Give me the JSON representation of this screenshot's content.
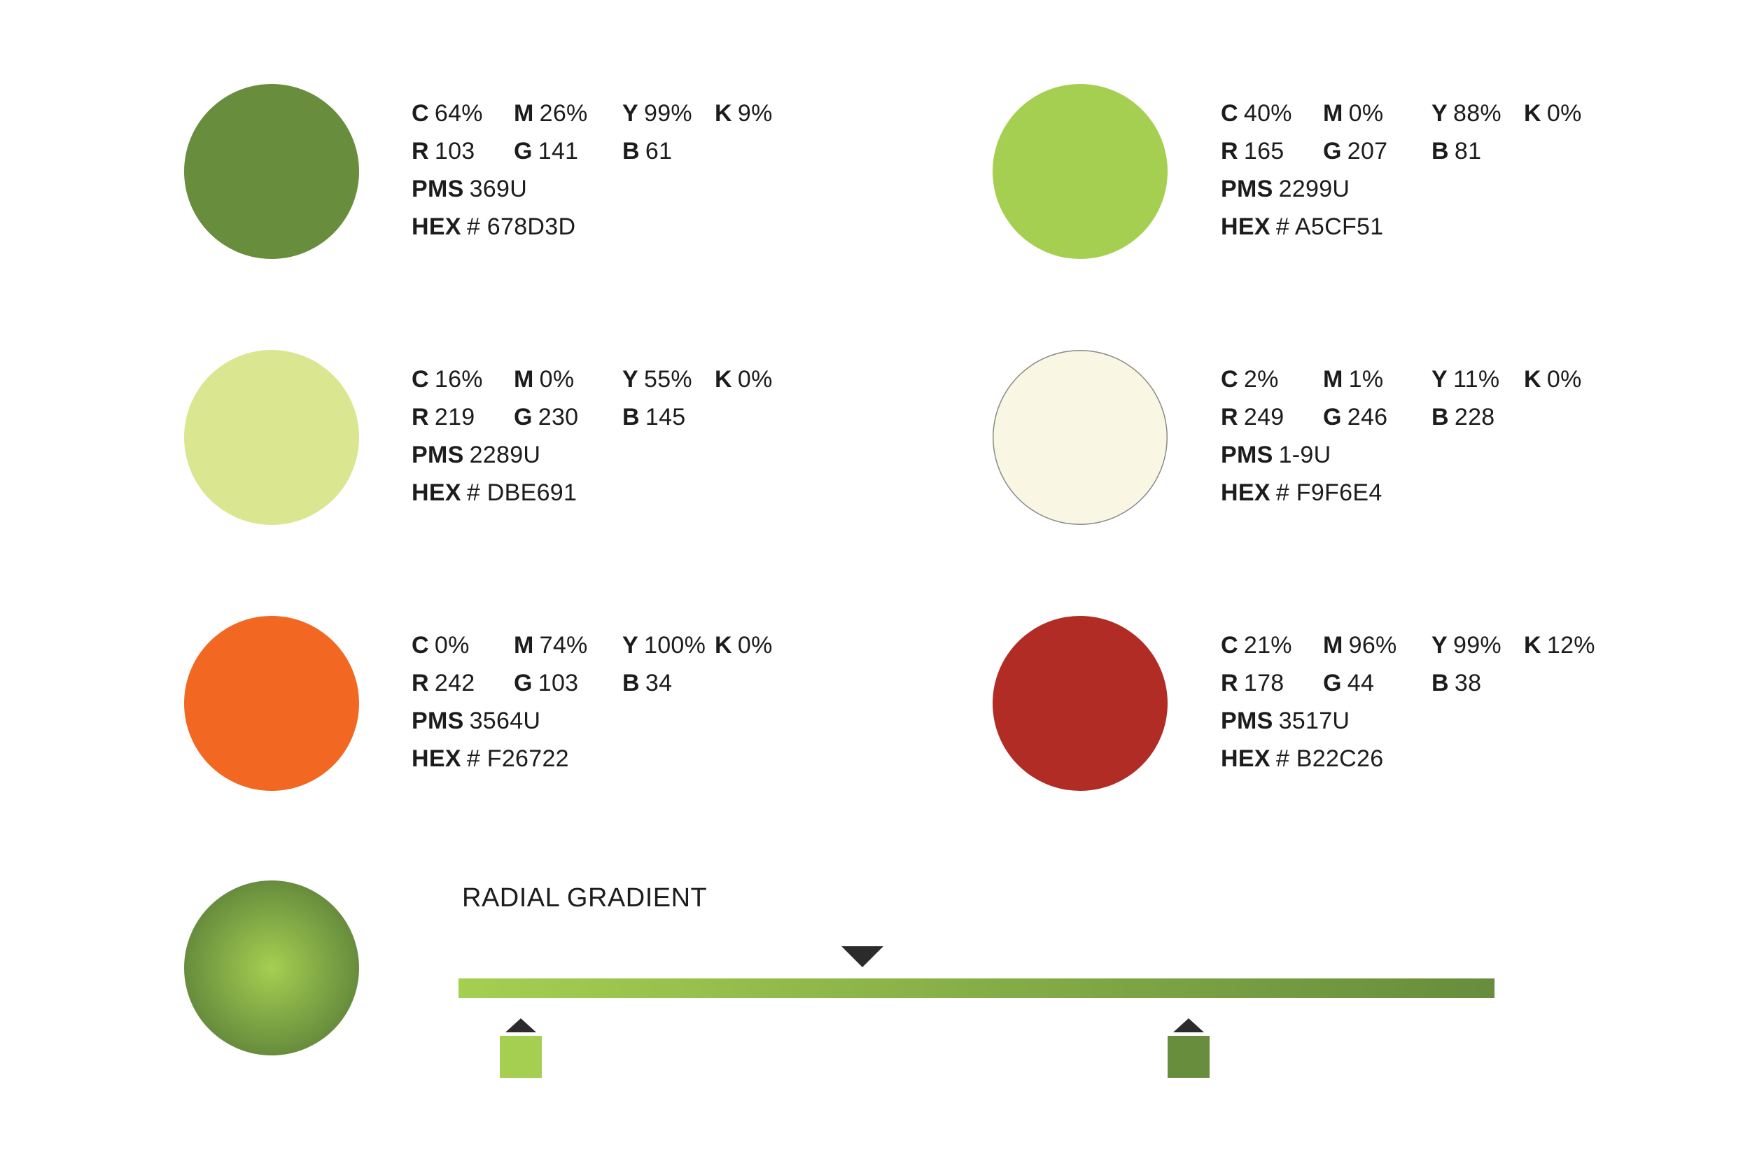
{
  "swatches": [
    {
      "c": "64%",
      "m": "26%",
      "y": "99%",
      "k": "9%",
      "r": "103",
      "g": "141",
      "b": "61",
      "pms": "369U",
      "hex": "678D3D",
      "color": "#678D3D"
    },
    {
      "c": "40%",
      "m": "0%",
      "y": "88%",
      "k": "0%",
      "r": "165",
      "g": "207",
      "b": "81",
      "pms": "2299U",
      "hex": "A5CF51",
      "color": "#A5CF51"
    },
    {
      "c": "16%",
      "m": "0%",
      "y": "55%",
      "k": "0%",
      "r": "219",
      "g": "230",
      "b": "145",
      "pms": "2289U",
      "hex": "DBE691",
      "color": "#DBE691"
    },
    {
      "c": "2%",
      "m": "1%",
      "y": "11%",
      "k": "0%",
      "r": "249",
      "g": "246",
      "b": "228",
      "pms": "1-9U",
      "hex": "F9F6E4",
      "color": "#F9F6E4"
    },
    {
      "c": "0%",
      "m": "74%",
      "y": "100%",
      "k": "0%",
      "r": "242",
      "g": "103",
      "b": "34",
      "pms": "3564U",
      "hex": "F26722",
      "color": "#F26722"
    },
    {
      "c": "21%",
      "m": "96%",
      "y": "99%",
      "k": "12%",
      "r": "178",
      "g": "44",
      "b": "38",
      "pms": "3517U",
      "hex": "B22C26",
      "color": "#B22C26"
    }
  ],
  "labels": {
    "c": "C",
    "m": "M",
    "y": "Y",
    "k": "K",
    "r": "R",
    "g": "G",
    "b": "B",
    "pms": "PMS",
    "hex": "HEX",
    "hex_prefix": "#"
  },
  "gradient": {
    "title": "RADIAL GRADIENT",
    "start_color": "#A5CF51",
    "end_color": "#678D3D",
    "midpoint": 0.39,
    "stops": [
      {
        "position": 0.06,
        "color": "#A5CF51"
      },
      {
        "position": 0.705,
        "color": "#678D3D"
      }
    ]
  }
}
